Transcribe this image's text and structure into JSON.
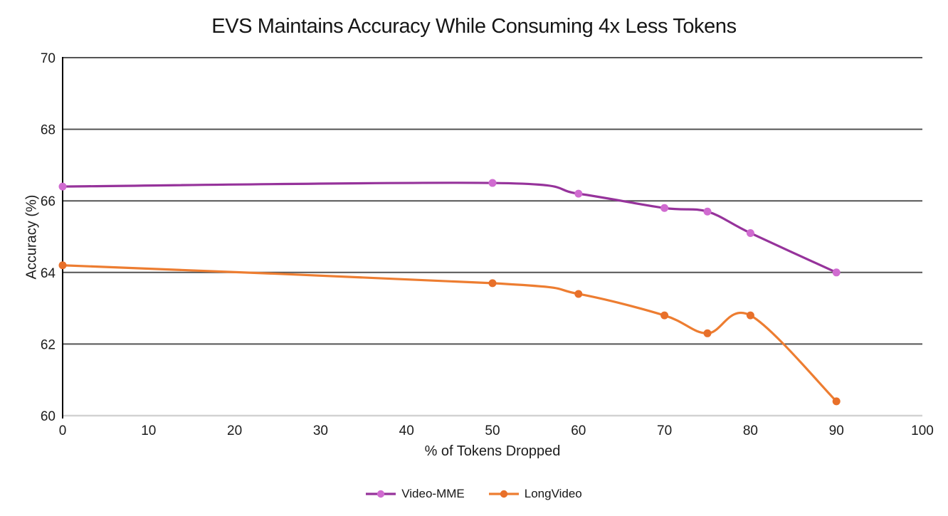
{
  "chart_data": {
    "type": "line",
    "title": "EVS Maintains Accuracy While Consuming 4x Less Tokens",
    "xlabel": "% of Tokens Dropped",
    "ylabel": "Accuracy (%)",
    "xlim": [
      0,
      100
    ],
    "ylim": [
      60,
      70
    ],
    "x_ticks": [
      0,
      10,
      20,
      30,
      40,
      50,
      60,
      70,
      80,
      90,
      100
    ],
    "y_ticks": [
      60,
      62,
      64,
      66,
      68,
      70
    ],
    "grid": "horizontal",
    "line_style": "smooth",
    "legend_position": "bottom",
    "series": [
      {
        "name": "Video-MME",
        "color": "#96339B",
        "marker_color": "#D06BD0",
        "x": [
          0,
          50,
          60,
          70,
          75,
          80,
          90
        ],
        "y": [
          66.4,
          66.5,
          66.2,
          65.8,
          65.7,
          65.1,
          64.0
        ]
      },
      {
        "name": "LongVideo",
        "color": "#ED7D31",
        "marker_color": "#E8702A",
        "x": [
          0,
          50,
          60,
          70,
          75,
          80,
          90
        ],
        "y": [
          64.2,
          63.7,
          63.4,
          62.8,
          62.3,
          62.8,
          60.4
        ]
      }
    ],
    "colors": {
      "gridline": "#545454",
      "axis_left": "#000000",
      "axis_bottom": "#D2D2D2",
      "tick_text": "#1C1C1C",
      "title_text": "#161616",
      "background": "#FFFFFF"
    }
  }
}
